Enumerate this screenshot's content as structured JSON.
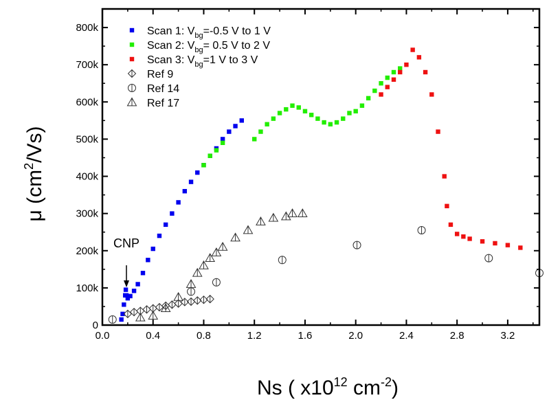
{
  "chart_data": {
    "type": "scatter",
    "xlabel": {
      "base": "Ns ( x10",
      "sup": "12",
      "mid": " cm",
      "sup2": "-2",
      "end": ")"
    },
    "ylabel": {
      "base": "μ (cm",
      "sup": "2",
      "end": "/Vs)"
    },
    "xlim": [
      0.0,
      3.45
    ],
    "ylim": [
      0,
      850000
    ],
    "x_ticks": [
      0.0,
      0.4,
      0.8,
      1.2,
      1.6,
      2.0,
      2.4,
      2.8,
      3.2
    ],
    "x_tick_labels": [
      "0.0",
      "0.4",
      "0.8",
      "1.2",
      "1.6",
      "2.0",
      "2.4",
      "2.8",
      "3.2"
    ],
    "y_ticks": [
      0,
      100000,
      200000,
      300000,
      400000,
      500000,
      600000,
      700000,
      800000
    ],
    "y_tick_labels": [
      "0",
      "100k",
      "200k",
      "300k",
      "400k",
      "500k",
      "600k",
      "700k",
      "800k"
    ],
    "legend_position": "top-left",
    "annotation": {
      "text": "CNP",
      "x": 0.19,
      "y": 95000
    },
    "series": [
      {
        "name": "Scan 1: V_bg=-0.5 V to 1 V",
        "legend": {
          "prefix": "Scan 1: V",
          "sub": "bg",
          "suffix": "=-0.5 V to 1 V"
        },
        "color": "#0000ee",
        "marker": "square",
        "x": [
          0.15,
          0.16,
          0.17,
          0.18,
          0.185,
          0.19,
          0.2,
          0.22,
          0.25,
          0.28,
          0.32,
          0.36,
          0.4,
          0.45,
          0.5,
          0.55,
          0.6,
          0.65,
          0.7,
          0.75,
          0.8,
          0.85,
          0.9,
          0.95,
          1.0,
          1.05,
          1.1
        ],
        "y": [
          15000,
          30000,
          55000,
          80000,
          95000,
          80000,
          72000,
          78000,
          92000,
          110000,
          140000,
          175000,
          205000,
          240000,
          270000,
          300000,
          330000,
          360000,
          385000,
          410000,
          430000,
          455000,
          475000,
          500000,
          520000,
          535000,
          550000
        ]
      },
      {
        "name": "Scan 2: V_bg= 0.5 V to 2 V",
        "legend": {
          "prefix": "Scan 2: V",
          "sub": "bg",
          "suffix": "= 0.5 V to 2 V"
        },
        "color": "#22ee00",
        "marker": "square",
        "x": [
          0.8,
          0.85,
          0.9,
          0.95,
          1.2,
          1.25,
          1.3,
          1.35,
          1.4,
          1.45,
          1.5,
          1.55,
          1.6,
          1.65,
          1.7,
          1.75,
          1.8,
          1.85,
          1.9,
          1.95,
          2.0,
          2.05,
          2.1,
          2.15,
          2.2,
          2.25,
          2.3,
          2.35
        ],
        "y": [
          430000,
          455000,
          470000,
          490000,
          500000,
          520000,
          540000,
          555000,
          570000,
          580000,
          590000,
          585000,
          575000,
          565000,
          555000,
          545000,
          540000,
          545000,
          555000,
          570000,
          575000,
          590000,
          610000,
          630000,
          650000,
          665000,
          680000,
          690000
        ]
      },
      {
        "name": "Scan 3: V_bg=1 V to 3 V",
        "legend": {
          "prefix": "Scan 3: V",
          "sub": "bg",
          "suffix": "=1 V to 3 V"
        },
        "color": "#ee1111",
        "marker": "square",
        "x": [
          2.2,
          2.25,
          2.3,
          2.35,
          2.4,
          2.45,
          2.5,
          2.55,
          2.6,
          2.65,
          2.7,
          2.72,
          2.75,
          2.8,
          2.85,
          2.9,
          3.0,
          3.1,
          3.2,
          3.3
        ],
        "y": [
          620000,
          640000,
          660000,
          680000,
          700000,
          740000,
          720000,
          680000,
          620000,
          520000,
          400000,
          320000,
          270000,
          245000,
          238000,
          232000,
          225000,
          220000,
          215000,
          208000
        ]
      },
      {
        "name": "Ref 9",
        "color": "#333333",
        "marker": "diamond",
        "x": [
          0.2,
          0.25,
          0.3,
          0.35,
          0.4,
          0.45,
          0.5,
          0.55,
          0.6,
          0.65,
          0.7,
          0.75,
          0.8,
          0.85
        ],
        "y": [
          30000,
          35000,
          38000,
          42000,
          45000,
          48000,
          52000,
          55000,
          58000,
          62000,
          63000,
          66000,
          68000,
          70000
        ]
      },
      {
        "name": "Ref 14",
        "color": "#333333",
        "marker": "circle",
        "x": [
          0.08,
          0.7,
          0.9,
          1.42,
          2.01,
          2.52,
          3.05,
          3.45
        ],
        "y": [
          15000,
          90000,
          115000,
          175000,
          215000,
          255000,
          180000,
          140000
        ]
      },
      {
        "name": "Ref 17",
        "color": "#333333",
        "marker": "triangle",
        "x": [
          0.3,
          0.4,
          0.5,
          0.6,
          0.7,
          0.75,
          0.8,
          0.85,
          0.9,
          0.95,
          1.05,
          1.15,
          1.25,
          1.35,
          1.45,
          1.5,
          1.58
        ],
        "y": [
          20000,
          25000,
          45000,
          75000,
          110000,
          140000,
          160000,
          180000,
          195000,
          210000,
          235000,
          255000,
          278000,
          288000,
          292000,
          300000,
          300000
        ]
      }
    ]
  }
}
